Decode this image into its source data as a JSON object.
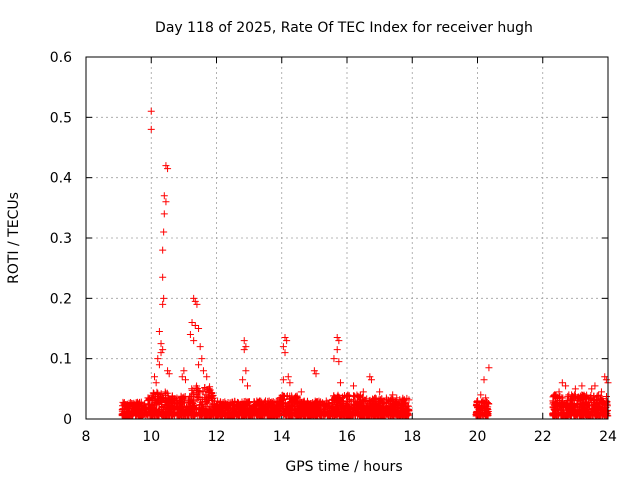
{
  "chart_data": {
    "type": "scatter",
    "title": "Day 118 of 2025, Rate Of TEC Index for receiver hugh",
    "xlabel": "GPS time / hours",
    "ylabel": "ROTI / TECUs",
    "xlim": [
      8,
      24
    ],
    "ylim": [
      0,
      0.6
    ],
    "xticks": [
      "8",
      "10",
      "12",
      "14",
      "16",
      "18",
      "20",
      "22",
      "24"
    ],
    "yticks": [
      "0",
      "0.1",
      "0.2",
      "0.3",
      "0.4",
      "0.5",
      "0.6"
    ],
    "grid": true,
    "marker": "+",
    "color": "#ff0000",
    "series": [
      {
        "name": "ROTI",
        "points": [
          [
            10.0,
            0.51
          ],
          [
            10.0,
            0.48
          ],
          [
            10.45,
            0.42
          ],
          [
            10.5,
            0.415
          ],
          [
            10.4,
            0.37
          ],
          [
            10.45,
            0.36
          ],
          [
            10.4,
            0.34
          ],
          [
            10.38,
            0.31
          ],
          [
            10.35,
            0.28
          ],
          [
            10.35,
            0.235
          ],
          [
            10.38,
            0.2
          ],
          [
            10.35,
            0.19
          ],
          [
            10.25,
            0.145
          ],
          [
            10.3,
            0.125
          ],
          [
            10.35,
            0.115
          ],
          [
            10.3,
            0.11
          ],
          [
            10.2,
            0.1
          ],
          [
            10.25,
            0.09
          ],
          [
            10.5,
            0.08
          ],
          [
            10.55,
            0.075
          ],
          [
            10.1,
            0.07
          ],
          [
            10.15,
            0.06
          ],
          [
            11.3,
            0.2
          ],
          [
            11.35,
            0.195
          ],
          [
            11.4,
            0.19
          ],
          [
            11.25,
            0.16
          ],
          [
            11.35,
            0.155
          ],
          [
            11.45,
            0.15
          ],
          [
            11.2,
            0.14
          ],
          [
            11.3,
            0.13
          ],
          [
            11.5,
            0.12
          ],
          [
            11.55,
            0.1
          ],
          [
            11.45,
            0.09
          ],
          [
            11.6,
            0.08
          ],
          [
            11.7,
            0.07
          ],
          [
            11.0,
            0.08
          ],
          [
            10.95,
            0.07
          ],
          [
            11.05,
            0.065
          ],
          [
            12.85,
            0.13
          ],
          [
            12.9,
            0.12
          ],
          [
            12.85,
            0.115
          ],
          [
            12.9,
            0.08
          ],
          [
            12.8,
            0.065
          ],
          [
            12.95,
            0.055
          ],
          [
            14.1,
            0.135
          ],
          [
            14.15,
            0.13
          ],
          [
            14.05,
            0.12
          ],
          [
            14.1,
            0.11
          ],
          [
            14.2,
            0.07
          ],
          [
            14.05,
            0.065
          ],
          [
            14.25,
            0.06
          ],
          [
            15.0,
            0.08
          ],
          [
            15.05,
            0.075
          ],
          [
            14.6,
            0.045
          ],
          [
            15.7,
            0.135
          ],
          [
            15.75,
            0.13
          ],
          [
            15.7,
            0.115
          ],
          [
            15.6,
            0.1
          ],
          [
            15.75,
            0.095
          ],
          [
            15.8,
            0.06
          ],
          [
            16.2,
            0.055
          ],
          [
            16.5,
            0.045
          ],
          [
            16.7,
            0.07
          ],
          [
            16.75,
            0.065
          ],
          [
            17.0,
            0.045
          ],
          [
            17.4,
            0.04
          ],
          [
            17.7,
            0.03
          ],
          [
            20.2,
            0.065
          ],
          [
            20.35,
            0.085
          ],
          [
            20.1,
            0.04
          ],
          [
            20.25,
            0.035
          ],
          [
            20.0,
            0.03
          ],
          [
            22.6,
            0.06
          ],
          [
            22.7,
            0.055
          ],
          [
            22.5,
            0.045
          ],
          [
            23.0,
            0.05
          ],
          [
            23.2,
            0.055
          ],
          [
            23.5,
            0.05
          ],
          [
            23.9,
            0.07
          ],
          [
            23.95,
            0.065
          ],
          [
            24.0,
            0.06
          ],
          [
            23.8,
            0.045
          ],
          [
            22.8,
            0.04
          ],
          [
            23.6,
            0.055
          ],
          [
            9.2,
            0.02
          ],
          [
            9.6,
            0.025
          ],
          [
            9.9,
            0.035
          ],
          [
            12.3,
            0.02
          ],
          [
            13.5,
            0.025
          ],
          [
            16.0,
            0.03
          ],
          [
            17.9,
            0.015
          ]
        ]
      }
    ],
    "dense_bands": [
      {
        "x_start": 9.1,
        "x_end": 9.85,
        "y_base": 0.005,
        "y_top": 0.028
      },
      {
        "x_start": 9.85,
        "x_end": 10.5,
        "y_base": 0.005,
        "y_top": 0.045
      },
      {
        "x_start": 10.5,
        "x_end": 11.2,
        "y_base": 0.005,
        "y_top": 0.04
      },
      {
        "x_start": 11.2,
        "x_end": 11.9,
        "y_base": 0.005,
        "y_top": 0.055
      },
      {
        "x_start": 11.9,
        "x_end": 12.7,
        "y_base": 0.005,
        "y_top": 0.03
      },
      {
        "x_start": 12.7,
        "x_end": 13.9,
        "y_base": 0.005,
        "y_top": 0.03
      },
      {
        "x_start": 13.9,
        "x_end": 14.5,
        "y_base": 0.005,
        "y_top": 0.04
      },
      {
        "x_start": 14.5,
        "x_end": 15.5,
        "y_base": 0.005,
        "y_top": 0.03
      },
      {
        "x_start": 15.5,
        "x_end": 16.5,
        "y_base": 0.005,
        "y_top": 0.04
      },
      {
        "x_start": 16.5,
        "x_end": 17.9,
        "y_base": 0.005,
        "y_top": 0.035
      },
      {
        "x_start": 19.95,
        "x_end": 20.35,
        "y_base": 0.005,
        "y_top": 0.03
      },
      {
        "x_start": 22.3,
        "x_end": 24.0,
        "y_base": 0.005,
        "y_top": 0.04
      }
    ]
  }
}
